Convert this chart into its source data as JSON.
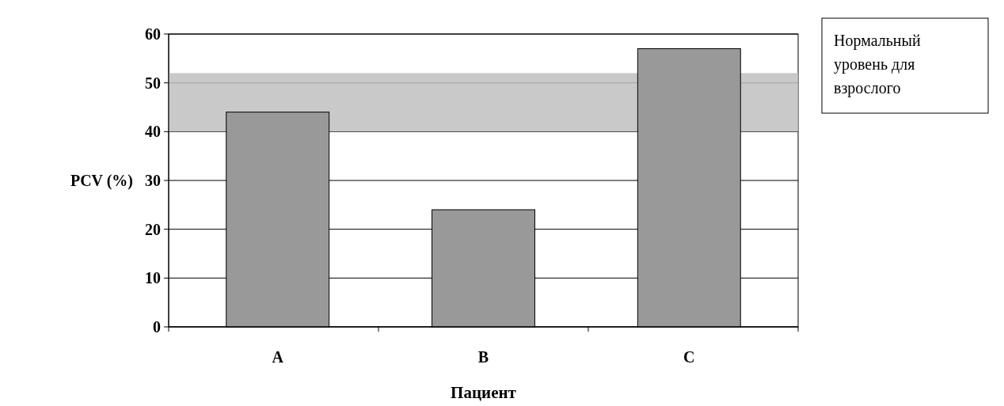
{
  "chart_data": {
    "type": "bar",
    "xlabel": "Пациент",
    "ylabel": "PCV (%)",
    "categories": [
      "A",
      "B",
      "C"
    ],
    "values": [
      44,
      24,
      57
    ],
    "color": "#999999",
    "ylim": [
      0,
      60
    ],
    "yticks": [
      0,
      10,
      20,
      30,
      40,
      50,
      60
    ],
    "grid": "y",
    "bands": [
      {
        "axis": "y",
        "from": 40,
        "to": 52,
        "label": "Нормальный уровень для взрослого",
        "color": "#c0c0c0"
      }
    ]
  }
}
